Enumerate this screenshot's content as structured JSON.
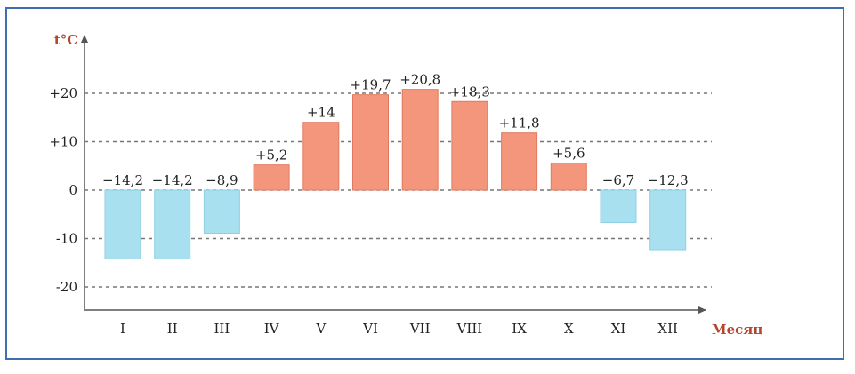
{
  "chart_data": {
    "type": "bar",
    "ylabel": "t°C",
    "xlabel": "Месяц",
    "categories": [
      "I",
      "II",
      "III",
      "IV",
      "V",
      "VI",
      "VII",
      "VIII",
      "IX",
      "X",
      "XI",
      "XII"
    ],
    "values": [
      -14.2,
      -14.2,
      -8.9,
      5.2,
      14,
      19.7,
      20.8,
      18.3,
      11.8,
      5.6,
      -6.7,
      -12.3
    ],
    "data_labels": [
      "−14,2",
      "−14,2",
      "−8,9",
      "+5,2",
      "+14",
      "+19,7",
      "+20,8",
      "+18,3",
      "+11,8",
      "+5,6",
      "−6,7",
      "−12,3"
    ],
    "yticks": [
      20,
      10,
      0,
      -10,
      -20
    ],
    "ytick_labels": [
      "+20",
      "+10",
      "0",
      "-10",
      "-20"
    ],
    "ylim": [
      -25,
      30
    ],
    "grid": true,
    "colors": {
      "positive": "#f4967b",
      "negative": "#a9e0f0",
      "axis_label": "#b5452b",
      "axis": "#555555",
      "grid": "#777777",
      "border": "#3f6fb0"
    }
  }
}
